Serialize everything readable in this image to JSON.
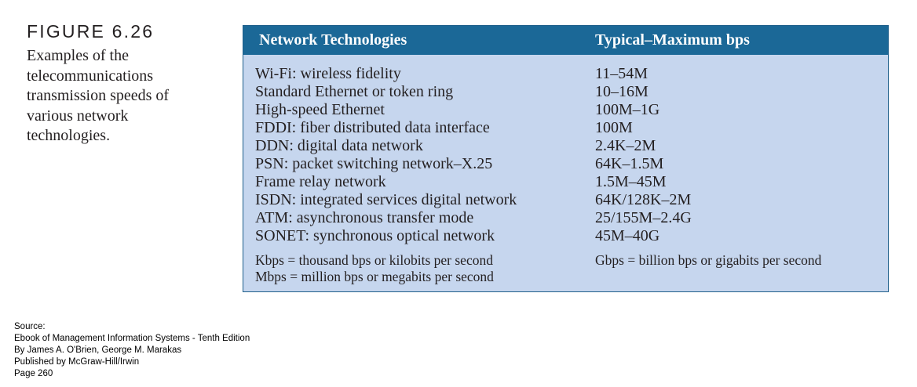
{
  "figure": {
    "label": "FIGURE 6.26",
    "caption": "Examples of the telecommunications transmission speeds of various network technologies."
  },
  "table": {
    "headers": [
      "Network Technologies",
      "Typical–Maximum bps"
    ],
    "rows": [
      [
        "Wi-Fi: wireless fidelity",
        "11–54M"
      ],
      [
        "Standard Ethernet or token ring",
        "10–16M"
      ],
      [
        "High-speed Ethernet",
        "100M–1G"
      ],
      [
        "FDDI: fiber distributed data interface",
        "100M"
      ],
      [
        "DDN: digital data network",
        "2.4K–2M"
      ],
      [
        "PSN: packet switching network–X.25",
        "64K–1.5M"
      ],
      [
        "Frame relay network",
        "1.5M–45M"
      ],
      [
        "ISDN: integrated services digital network",
        "64K/128K–2M"
      ],
      [
        "ATM: asynchronous transfer mode",
        "25/155M–2.4G"
      ],
      [
        "SONET: synchronous optical network",
        "45M–40G"
      ]
    ],
    "notes_left": [
      "Kbps = thousand bps or kilobits per second",
      "Mbps = million bps or megabits per second"
    ],
    "notes_right": [
      "Gbps = billion bps or gigabits per second"
    ],
    "colors": {
      "header_bg": "#1b6897",
      "body_bg": "#c6d6ee",
      "header_text": "#ffffff"
    }
  },
  "source": [
    "Source:",
    "Ebook of Management Information Systems - Tenth Edition",
    "By James A. O'Brien, George M. Marakas",
    "Published by McGraw-Hill/Irwin",
    "Page 260"
  ]
}
